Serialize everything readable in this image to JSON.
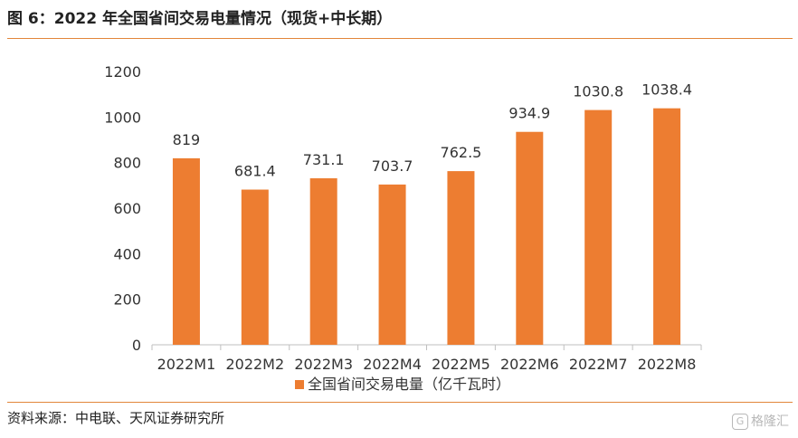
{
  "header": {
    "title": "图 6：2022 年全国省间交易电量情况（现货+中长期）"
  },
  "footer": {
    "source": "资料来源：中电联、天风证券研究所",
    "watermark": "格隆汇"
  },
  "chart_data": {
    "type": "bar",
    "categories": [
      "2022M1",
      "2022M2",
      "2022M3",
      "2022M4",
      "2022M5",
      "2022M6",
      "2022M7",
      "2022M8"
    ],
    "series": [
      {
        "name": "全国省间交易电量（亿千瓦时）",
        "values": [
          819,
          681.4,
          731.1,
          703.7,
          762.5,
          934.9,
          1030.8,
          1038.4
        ],
        "labels": [
          "819",
          "681.4",
          "731.1",
          "703.7",
          "762.5",
          "934.9",
          "1030.8",
          "1038.4"
        ],
        "color": "#ed7d31"
      }
    ],
    "yticks": [
      "0",
      "200",
      "400",
      "600",
      "800",
      "1000",
      "1200"
    ],
    "ylim": [
      0,
      1200
    ],
    "grid": false,
    "legend": "bottom"
  }
}
